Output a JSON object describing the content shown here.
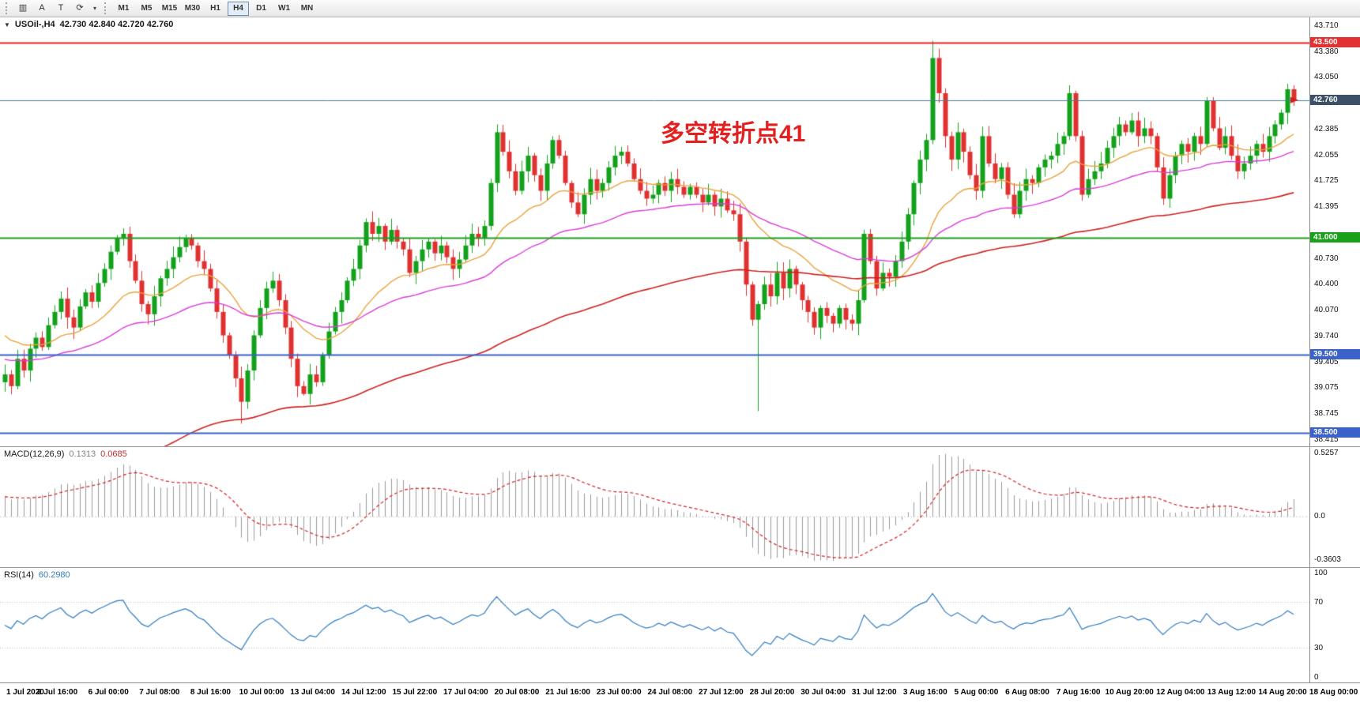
{
  "toolbar": {
    "icons": [
      {
        "name": "chart-icon",
        "glyph": "▥"
      },
      {
        "name": "text-label-icon",
        "glyph": "A"
      },
      {
        "name": "text-tool-icon",
        "glyph": "T"
      },
      {
        "name": "template-icon",
        "glyph": "⟳"
      }
    ],
    "dropdown_caret": "▾",
    "timeframes": [
      "M1",
      "M5",
      "M15",
      "M30",
      "H1",
      "H4",
      "D1",
      "W1",
      "MN"
    ],
    "active_timeframe": "H4"
  },
  "chart": {
    "title_collapse_icon": "▼",
    "symbol_period": "USOil-,H4",
    "ohlc": "42.730 42.840 42.720 42.760",
    "annotation": {
      "text": "多空转折点41",
      "color": "#e32020"
    }
  },
  "indicators": {
    "macd": {
      "label": "MACD(12,26,9)",
      "value_main": "0.1313",
      "value_signal": "0.0685",
      "ticks": [
        "0.5257",
        "0.0",
        "-0.3603"
      ]
    },
    "rsi": {
      "label": "RSI(14)",
      "value": "60.2980",
      "ticks": [
        "100",
        "70",
        "30",
        "0"
      ]
    }
  },
  "price_axis": {
    "ticks": [
      "43.710",
      "43.380",
      "43.050",
      "42.385",
      "42.055",
      "41.725",
      "41.395",
      "40.730",
      "40.400",
      "40.070",
      "39.740",
      "39.405",
      "39.075",
      "38.745",
      "38.415"
    ],
    "tags": [
      {
        "text": "43.500",
        "price": 43.5,
        "bg": "#e03232"
      },
      {
        "text": "42.760",
        "price": 42.76,
        "bg": "#3d5166"
      },
      {
        "text": "41.000",
        "price": 41.0,
        "bg": "#18a018"
      },
      {
        "text": "39.500",
        "price": 39.5,
        "bg": "#3a62c8"
      },
      {
        "text": "38.500",
        "price": 38.5,
        "bg": "#3a62c8"
      }
    ]
  },
  "time_axis": [
    "1 Jul 2020",
    "2 Jul 16:00",
    "6 Jul 00:00",
    "7 Jul 08:00",
    "8 Jul 16:00",
    "10 Jul 00:00",
    "13 Jul 04:00",
    "14 Jul 12:00",
    "15 Jul 22:00",
    "17 Jul 04:00",
    "20 Jul 08:00",
    "21 Jul 16:00",
    "23 Jul 00:00",
    "24 Jul 08:00",
    "27 Jul 12:00",
    "28 Jul 20:00",
    "30 Jul 04:00",
    "31 Jul 12:00",
    "3 Aug 16:00",
    "5 Aug 00:00",
    "6 Aug 08:00",
    "7 Aug 16:00",
    "10 Aug 20:00",
    "12 Aug 04:00",
    "13 Aug 12:00",
    "14 Aug 20:00",
    "18 Aug 00:00"
  ],
  "chart_data": {
    "type": "candlestick",
    "symbol": "USOil",
    "period": "H4",
    "price_range": [
      38.33,
      43.82
    ],
    "up_color": "#12a11b",
    "down_color": "#e03030",
    "current_price": 42.76,
    "current_price_color": "#4a7d99",
    "price_marker": {
      "price": 42.76,
      "color": "#d02020"
    },
    "hlines": [
      {
        "price": 43.5,
        "color": "#e82222",
        "width": 2
      },
      {
        "price": 41.0,
        "color": "#1f9e1f",
        "width": 2
      },
      {
        "price": 39.5,
        "color": "#3a62c8",
        "width": 2
      },
      {
        "price": 38.5,
        "color": "#3a62c8",
        "width": 2
      }
    ],
    "moving_averages": [
      {
        "name": "ema-fast-orange",
        "period": 20,
        "seed": 39.8,
        "color": "#e8a23c",
        "width": 1.4
      },
      {
        "name": "ema-mid-magenta",
        "period": 48,
        "seed": 39.45,
        "color": "#d83cd8",
        "width": 1.4
      },
      {
        "name": "ema-slow-red",
        "period": 120,
        "seed": 37.3,
        "color": "#cc2020",
        "width": 1.6
      }
    ],
    "macd": {
      "fast": 12,
      "slow": 26,
      "signal": 9,
      "warmup_offset": 0.18,
      "hist_color": "#9a9a9a",
      "signal_color": "#d02020",
      "range": [
        -0.42,
        0.58
      ]
    },
    "rsi": {
      "period": 14,
      "color": "#2e7bbf",
      "levels": [
        70,
        30
      ],
      "range": [
        0,
        100
      ]
    },
    "candles": {
      "first_open": 39.15,
      "closes": [
        39.25,
        39.1,
        39.45,
        39.3,
        39.58,
        39.72,
        39.6,
        39.88,
        40.05,
        40.22,
        39.98,
        39.85,
        40.12,
        40.3,
        40.18,
        40.42,
        40.6,
        40.82,
        41.0,
        41.05,
        40.7,
        40.45,
        40.15,
        40.02,
        40.25,
        40.48,
        40.6,
        40.75,
        40.88,
        41.0,
        40.9,
        40.7,
        40.6,
        40.35,
        40.05,
        39.75,
        39.5,
        39.2,
        38.9,
        39.3,
        39.75,
        40.1,
        40.35,
        40.45,
        40.2,
        39.85,
        39.45,
        39.1,
        39.0,
        39.25,
        39.15,
        39.5,
        39.8,
        40.05,
        40.2,
        40.45,
        40.6,
        40.9,
        41.2,
        41.05,
        41.15,
        40.95,
        41.1,
        40.95,
        40.85,
        40.55,
        40.7,
        40.85,
        40.95,
        40.8,
        40.9,
        40.75,
        40.6,
        40.72,
        40.9,
        41.05,
        41.0,
        41.15,
        41.7,
        42.35,
        42.1,
        41.85,
        41.6,
        41.85,
        42.05,
        41.8,
        41.6,
        41.95,
        42.25,
        42.05,
        41.7,
        41.45,
        41.3,
        41.55,
        41.75,
        41.6,
        41.7,
        41.9,
        42.05,
        42.1,
        41.95,
        41.75,
        41.6,
        41.5,
        41.55,
        41.7,
        41.6,
        41.75,
        41.65,
        41.55,
        41.65,
        41.55,
        41.45,
        41.55,
        41.4,
        41.5,
        41.35,
        41.3,
        40.95,
        40.4,
        39.95,
        40.15,
        40.4,
        40.25,
        40.55,
        40.35,
        40.6,
        40.4,
        40.2,
        40.05,
        39.85,
        40.1,
        40.0,
        39.9,
        40.1,
        39.95,
        39.9,
        40.2,
        41.05,
        40.7,
        40.35,
        40.55,
        40.5,
        40.7,
        40.95,
        41.3,
        41.7,
        42.0,
        42.25,
        43.3,
        42.85,
        42.3,
        42.0,
        42.35,
        42.1,
        41.8,
        41.6,
        42.3,
        41.95,
        41.75,
        41.9,
        41.55,
        41.3,
        41.6,
        41.75,
        41.7,
        41.9,
        42.0,
        42.05,
        42.2,
        42.3,
        42.85,
        42.3,
        41.55,
        41.75,
        41.85,
        41.95,
        42.15,
        42.3,
        42.45,
        42.35,
        42.5,
        42.3,
        42.4,
        42.3,
        41.9,
        41.5,
        41.8,
        42.05,
        42.2,
        42.1,
        42.3,
        42.2,
        42.75,
        42.4,
        42.15,
        42.3,
        42.05,
        41.85,
        41.95,
        42.05,
        42.2,
        42.1,
        42.3,
        42.45,
        42.6,
        42.9,
        42.76
      ],
      "wick_overrides": {
        "38": {
          "low": 38.62
        },
        "48": {
          "low": 38.98
        },
        "79": {
          "high": 42.45
        },
        "121": {
          "low": 38.78
        },
        "149": {
          "high": 43.52
        },
        "150": {
          "high": 43.42
        },
        "171": {
          "high": 42.95
        },
        "193": {
          "high": 42.8
        },
        "206": {
          "high": 42.97
        }
      }
    }
  }
}
